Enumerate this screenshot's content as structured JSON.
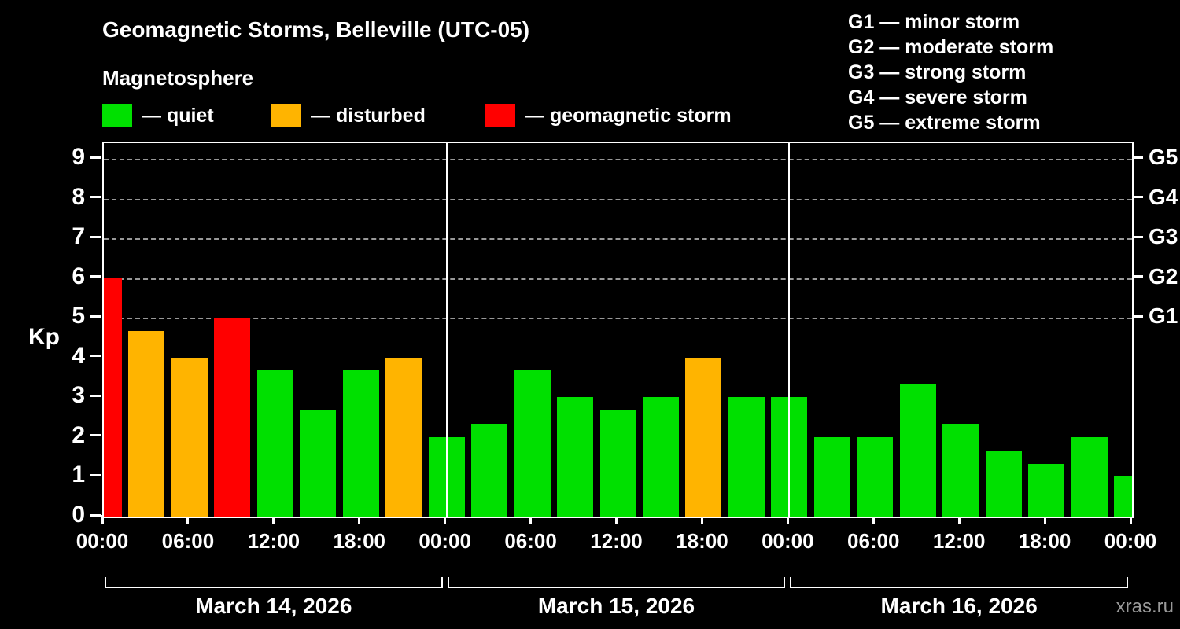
{
  "header": {
    "title": "Geomagnetic Storms, Belleville (UTC-05)",
    "subtitle": "Magnetosphere"
  },
  "legend": {
    "items": [
      {
        "key": "quiet",
        "label": "— quiet",
        "color": "#00e000"
      },
      {
        "key": "disturbed",
        "label": "— disturbed",
        "color": "#ffb400"
      },
      {
        "key": "storm",
        "label": "— geomagnetic storm",
        "color": "#ff0000"
      }
    ]
  },
  "g_legend": [
    "G1 — minor storm",
    "G2 — moderate storm",
    "G3 — strong storm",
    "G4 — severe storm",
    "G5 — extreme storm"
  ],
  "axis": {
    "y_label": "Kp",
    "y_ticks": [
      0,
      1,
      2,
      3,
      4,
      5,
      6,
      7,
      8,
      9
    ],
    "gridline_levels": [
      5,
      6,
      7,
      8,
      9
    ],
    "g_ticks": [
      {
        "label": "G1",
        "kp": 5
      },
      {
        "label": "G2",
        "kp": 6
      },
      {
        "label": "G3",
        "kp": 7
      },
      {
        "label": "G4",
        "kp": 8
      },
      {
        "label": "G5",
        "kp": 9
      }
    ],
    "x_tick_labels": [
      "00:00",
      "06:00",
      "12:00",
      "18:00",
      "00:00",
      "06:00",
      "12:00",
      "18:00",
      "00:00",
      "06:00",
      "12:00",
      "18:00",
      "00:00"
    ]
  },
  "chart_data": {
    "type": "bar",
    "title": "Geomagnetic Storms, Belleville (UTC-05)",
    "ylabel": "Kp",
    "ylim": [
      0,
      9.4
    ],
    "interval_hours": 3,
    "first_bar_time": "00:00",
    "days": [
      {
        "date": "March 14, 2026",
        "kp": [
          6,
          4.67,
          4,
          5,
          3.67,
          2.67,
          3.67,
          4
        ],
        "status": [
          "storm",
          "disturbed",
          "disturbed",
          "storm",
          "quiet",
          "quiet",
          "quiet",
          "disturbed"
        ]
      },
      {
        "date": "March 15, 2026",
        "kp": [
          2,
          2.33,
          3.67,
          3,
          2.67,
          3,
          4,
          3
        ],
        "status": [
          "quiet",
          "quiet",
          "quiet",
          "quiet",
          "quiet",
          "quiet",
          "disturbed",
          "quiet"
        ]
      },
      {
        "date": "March 16, 2026",
        "kp": [
          3,
          2,
          2,
          3.33,
          2.33,
          1.67,
          1.33,
          2
        ],
        "status": [
          "quiet",
          "quiet",
          "quiet",
          "quiet",
          "quiet",
          "quiet",
          "quiet",
          "quiet"
        ]
      }
    ],
    "trailing_point": {
      "kp": 1,
      "status": "quiet"
    },
    "status_colors": {
      "quiet": "#00e000",
      "disturbed": "#ffb400",
      "storm": "#ff0000"
    },
    "grid": "dashed horizontal at Kp 5-9",
    "legend_position": "top-left"
  },
  "watermark": "xras.ru"
}
